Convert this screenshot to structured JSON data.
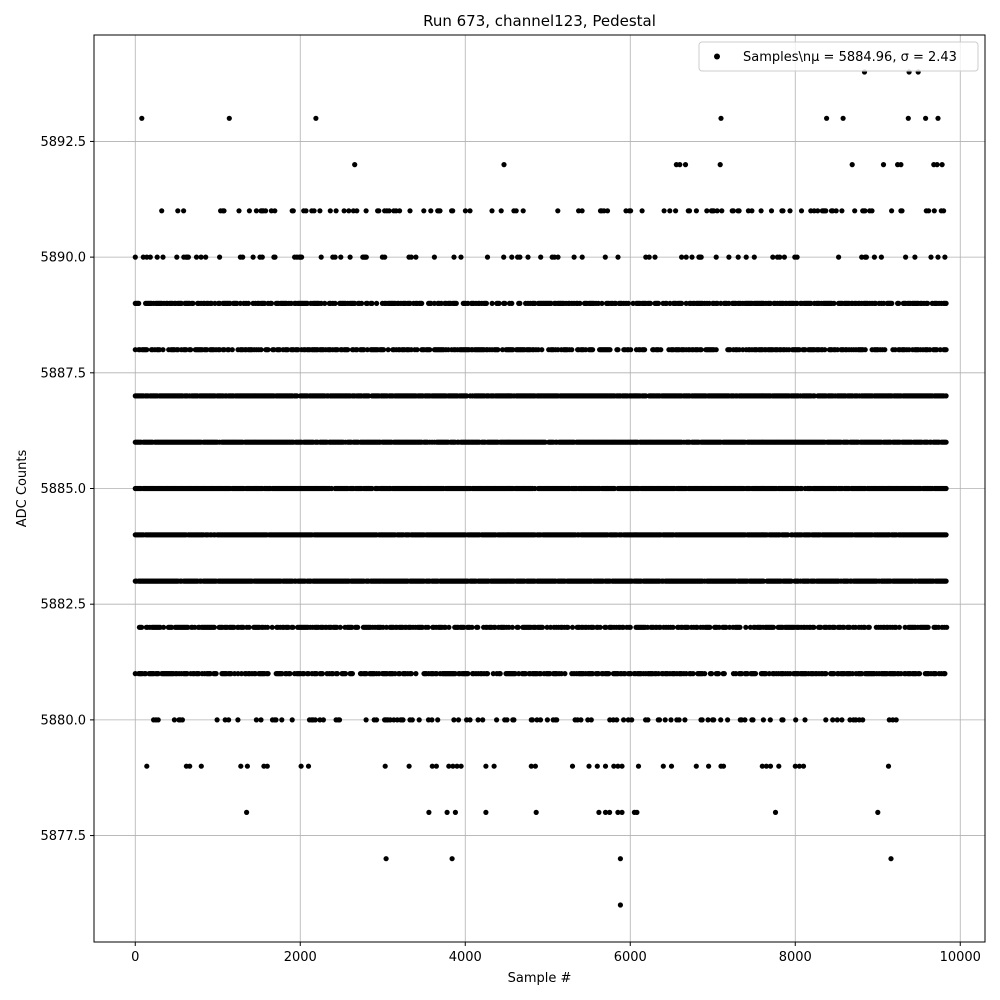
{
  "chart_data": {
    "type": "scatter",
    "title": "Run 673, channel123, Pedestal",
    "xlabel": "Sample #",
    "ylabel": "ADC Counts",
    "xlim": [
      -500,
      10300
    ],
    "ylim": [
      5875.2,
      5894.8
    ],
    "xticks": [
      0,
      2000,
      4000,
      6000,
      8000,
      10000
    ],
    "yticks": [
      5877.5,
      5880.0,
      5882.5,
      5885.0,
      5887.5,
      5890.0,
      5892.5
    ],
    "xtick_labels": [
      "0",
      "2000",
      "4000",
      "6000",
      "8000",
      "10000"
    ],
    "ytick_labels": [
      "5877.5",
      "5880.0",
      "5882.5",
      "5885.0",
      "5887.5",
      "5890.0",
      "5892.5"
    ],
    "grid": true,
    "legend_position": "top-right",
    "legend_label": "Samples\\nμ = 5884.96, σ = 2.43",
    "marker_color": "#000000",
    "x_range": [
      0,
      9850
    ],
    "levels": [
      {
        "y": 5884,
        "x": [
          0,
          9840
        ],
        "density": "dense"
      },
      {
        "y": 5885,
        "x": [
          0,
          9840
        ],
        "density": "dense"
      },
      {
        "y": 5886,
        "x": [
          0,
          9840
        ],
        "density": "dense"
      },
      {
        "y": 5887,
        "x": [
          0,
          9840
        ],
        "density": "dense"
      },
      {
        "y": 5883,
        "x": [
          0,
          9840
        ],
        "density": "dense"
      },
      {
        "y": 5888,
        "x": [
          0,
          9840
        ],
        "density": "medium"
      },
      {
        "y": 5882,
        "x": [
          50,
          9840
        ],
        "density": "medium"
      },
      {
        "y": 5889,
        "x": [
          0,
          9840
        ],
        "density": "medium"
      },
      {
        "y": 5881,
        "x": [
          0,
          9840
        ],
        "density": "medium"
      },
      {
        "y": 5880,
        "x": [
          180,
          9300
        ],
        "density": "sparse"
      },
      {
        "y": 5890,
        "x": [
          0,
          9840
        ],
        "density": "sparse"
      },
      {
        "y": 5891,
        "x": [
          180,
          9840
        ],
        "density": "sparse"
      }
    ],
    "points": [
      {
        "x": 140,
        "y": 5879
      },
      {
        "x": 620,
        "y": 5879
      },
      {
        "x": 660,
        "y": 5879
      },
      {
        "x": 800,
        "y": 5879
      },
      {
        "x": 1280,
        "y": 5879
      },
      {
        "x": 1360,
        "y": 5879
      },
      {
        "x": 1560,
        "y": 5879
      },
      {
        "x": 1600,
        "y": 5879
      },
      {
        "x": 2010,
        "y": 5879
      },
      {
        "x": 2100,
        "y": 5879
      },
      {
        "x": 3030,
        "y": 5879
      },
      {
        "x": 3320,
        "y": 5879
      },
      {
        "x": 3600,
        "y": 5879
      },
      {
        "x": 3650,
        "y": 5879
      },
      {
        "x": 3800,
        "y": 5879
      },
      {
        "x": 3850,
        "y": 5879
      },
      {
        "x": 3900,
        "y": 5879
      },
      {
        "x": 3950,
        "y": 5879
      },
      {
        "x": 4250,
        "y": 5879
      },
      {
        "x": 4350,
        "y": 5879
      },
      {
        "x": 4800,
        "y": 5879
      },
      {
        "x": 4850,
        "y": 5879
      },
      {
        "x": 5300,
        "y": 5879
      },
      {
        "x": 5500,
        "y": 5879
      },
      {
        "x": 5600,
        "y": 5879
      },
      {
        "x": 5700,
        "y": 5879
      },
      {
        "x": 5800,
        "y": 5879
      },
      {
        "x": 5850,
        "y": 5879
      },
      {
        "x": 5900,
        "y": 5879
      },
      {
        "x": 6100,
        "y": 5879
      },
      {
        "x": 6400,
        "y": 5879
      },
      {
        "x": 6500,
        "y": 5879
      },
      {
        "x": 6800,
        "y": 5879
      },
      {
        "x": 6950,
        "y": 5879
      },
      {
        "x": 7100,
        "y": 5879
      },
      {
        "x": 7130,
        "y": 5879
      },
      {
        "x": 7600,
        "y": 5879
      },
      {
        "x": 7650,
        "y": 5879
      },
      {
        "x": 7700,
        "y": 5879
      },
      {
        "x": 7800,
        "y": 5879
      },
      {
        "x": 8000,
        "y": 5879
      },
      {
        "x": 8050,
        "y": 5879
      },
      {
        "x": 8100,
        "y": 5879
      },
      {
        "x": 9130,
        "y": 5879
      },
      {
        "x": 1350,
        "y": 5878
      },
      {
        "x": 3560,
        "y": 5878
      },
      {
        "x": 3780,
        "y": 5878
      },
      {
        "x": 3880,
        "y": 5878
      },
      {
        "x": 4250,
        "y": 5878
      },
      {
        "x": 4860,
        "y": 5878
      },
      {
        "x": 5620,
        "y": 5878
      },
      {
        "x": 5700,
        "y": 5878
      },
      {
        "x": 5750,
        "y": 5878
      },
      {
        "x": 5850,
        "y": 5878
      },
      {
        "x": 5900,
        "y": 5878
      },
      {
        "x": 6050,
        "y": 5878
      },
      {
        "x": 6080,
        "y": 5878
      },
      {
        "x": 7760,
        "y": 5878
      },
      {
        "x": 9000,
        "y": 5878
      },
      {
        "x": 3040,
        "y": 5877
      },
      {
        "x": 3840,
        "y": 5877
      },
      {
        "x": 5880,
        "y": 5877
      },
      {
        "x": 9160,
        "y": 5877
      },
      {
        "x": 5880,
        "y": 5876
      },
      {
        "x": 2660,
        "y": 5892
      },
      {
        "x": 4470,
        "y": 5892
      },
      {
        "x": 6560,
        "y": 5892
      },
      {
        "x": 6600,
        "y": 5892
      },
      {
        "x": 6670,
        "y": 5892
      },
      {
        "x": 7090,
        "y": 5892
      },
      {
        "x": 8690,
        "y": 5892
      },
      {
        "x": 9070,
        "y": 5892
      },
      {
        "x": 9240,
        "y": 5892
      },
      {
        "x": 9280,
        "y": 5892
      },
      {
        "x": 9680,
        "y": 5892
      },
      {
        "x": 9720,
        "y": 5892
      },
      {
        "x": 9780,
        "y": 5892
      },
      {
        "x": 80,
        "y": 5893
      },
      {
        "x": 1140,
        "y": 5893
      },
      {
        "x": 2190,
        "y": 5893
      },
      {
        "x": 7100,
        "y": 5893
      },
      {
        "x": 8380,
        "y": 5893
      },
      {
        "x": 8580,
        "y": 5893
      },
      {
        "x": 9370,
        "y": 5893
      },
      {
        "x": 9580,
        "y": 5893
      },
      {
        "x": 9730,
        "y": 5893
      },
      {
        "x": 8840,
        "y": 5894
      },
      {
        "x": 9380,
        "y": 5894
      },
      {
        "x": 9490,
        "y": 5894
      }
    ]
  }
}
